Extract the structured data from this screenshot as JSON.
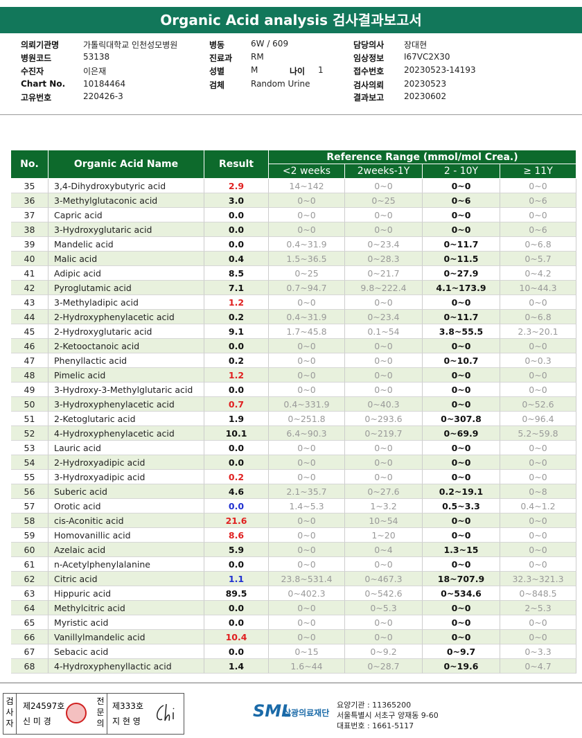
{
  "header": {
    "title": "Organic Acid analysis 검사결과보고서"
  },
  "info": {
    "left": [
      {
        "label": "의뢰기관명",
        "value": "가톨릭대학교 인천성모병원"
      },
      {
        "label": "병원코드",
        "value": "53138"
      },
      {
        "label": "수진자",
        "value": "이은재"
      },
      {
        "label": "Chart No.",
        "value": "10184464"
      },
      {
        "label": "고유번호",
        "value": "220426-3"
      }
    ],
    "middle": [
      {
        "label": "병동",
        "value": "6W / 609"
      },
      {
        "label": "진료과",
        "value": "RM"
      },
      {
        "label": "성별",
        "value": "M"
      },
      {
        "label": "검체",
        "value": "Random Urine"
      }
    ],
    "age": {
      "label": "나이",
      "value": "1"
    },
    "right": [
      {
        "label": "담당의사",
        "value": "장대현"
      },
      {
        "label": "임상정보",
        "value": "I67VC2X30"
      },
      {
        "label": "접수번호",
        "value": "20230523-14193"
      },
      {
        "label": "검사의뢰",
        "value": "20230523"
      },
      {
        "label": "결과보고",
        "value": "20230602"
      }
    ]
  },
  "table": {
    "headers": {
      "no": "No.",
      "name": "Organic Acid Name",
      "result": "Result",
      "reference": "Reference Range (mmol/mol Crea.)",
      "ages": [
        "<2 weeks",
        "2weeks-1Y",
        "2 - 10Y",
        "≥ 11Y"
      ]
    },
    "rows": [
      {
        "no": 35,
        "name": "3,4-Dihydroxybutyric acid",
        "result": "2.9",
        "color": "#e02020",
        "ranges": [
          "14~142",
          "0~0",
          "0~0",
          "0~0"
        ]
      },
      {
        "no": 36,
        "name": "3-Methylglutaconic acid",
        "result": "3.0",
        "ranges": [
          "0~0",
          "0~25",
          "0~6",
          "0~6"
        ]
      },
      {
        "no": 37,
        "name": "Capric acid",
        "result": "0.0",
        "ranges": [
          "0~0",
          "0~0",
          "0~0",
          "0~0"
        ]
      },
      {
        "no": 38,
        "name": "3-Hydroxyglutaric acid",
        "result": "0.0",
        "ranges": [
          "0~0",
          "0~0",
          "0~0",
          "0~6"
        ]
      },
      {
        "no": 39,
        "name": "Mandelic acid",
        "result": "0.0",
        "ranges": [
          "0.4~31.9",
          "0~23.4",
          "0~11.7",
          "0~6.8"
        ]
      },
      {
        "no": 40,
        "name": "Malic acid",
        "result": "0.4",
        "ranges": [
          "1.5~36.5",
          "0~28.3",
          "0~11.5",
          "0~5.7"
        ]
      },
      {
        "no": 41,
        "name": "Adipic acid",
        "result": "8.5",
        "ranges": [
          "0~25",
          "0~21.7",
          "0~27.9",
          "0~4.2"
        ]
      },
      {
        "no": 42,
        "name": "Pyroglutamic acid",
        "result": "7.1",
        "ranges": [
          "0.7~94.7",
          "9.8~222.4",
          "4.1~173.9",
          "10~44.3"
        ]
      },
      {
        "no": 43,
        "name": "3-Methyladipic acid",
        "result": "1.2",
        "color": "#e02020",
        "ranges": [
          "0~0",
          "0~0",
          "0~0",
          "0~0"
        ]
      },
      {
        "no": 44,
        "name": "2-Hydroxyphenylacetic acid",
        "result": "0.2",
        "ranges": [
          "0.4~31.9",
          "0~23.4",
          "0~11.7",
          "0~6.8"
        ]
      },
      {
        "no": 45,
        "name": "2-Hydroxyglutaric acid",
        "result": "9.1",
        "ranges": [
          "1.7~45.8",
          "0.1~54",
          "3.8~55.5",
          "2.3~20.1"
        ]
      },
      {
        "no": 46,
        "name": "2-Ketooctanoic acid",
        "result": "0.0",
        "ranges": [
          "0~0",
          "0~0",
          "0~0",
          "0~0"
        ]
      },
      {
        "no": 47,
        "name": "Phenyllactic acid",
        "result": "0.2",
        "ranges": [
          "0~0",
          "0~0",
          "0~10.7",
          "0~0.3"
        ]
      },
      {
        "no": 48,
        "name": "Pimelic acid",
        "result": "1.2",
        "color": "#e02020",
        "ranges": [
          "0~0",
          "0~0",
          "0~0",
          "0~0"
        ]
      },
      {
        "no": 49,
        "name": "3-Hydroxy-3-Methylglutaric acid",
        "result": "0.0",
        "ranges": [
          "0~0",
          "0~0",
          "0~0",
          "0~0"
        ]
      },
      {
        "no": 50,
        "name": "3-Hydroxyphenylacetic acid",
        "result": "0.7",
        "color": "#e02020",
        "ranges": [
          "0.4~331.9",
          "0~40.3",
          "0~0",
          "0~52.6"
        ]
      },
      {
        "no": 51,
        "name": "2-Ketoglutaric acid",
        "result": "1.9",
        "ranges": [
          "0~251.8",
          "0~293.6",
          "0~307.8",
          "0~96.4"
        ]
      },
      {
        "no": 52,
        "name": "4-Hydroxyphenylacetic acid",
        "result": "10.1",
        "ranges": [
          "6.4~90.3",
          "0~219.7",
          "0~69.9",
          "5.2~59.8"
        ]
      },
      {
        "no": 53,
        "name": "Lauric acid",
        "result": "0.0",
        "ranges": [
          "0~0",
          "0~0",
          "0~0",
          "0~0"
        ]
      },
      {
        "no": 54,
        "name": "2-Hydroxyadipic acid",
        "result": "0.0",
        "ranges": [
          "0~0",
          "0~0",
          "0~0",
          "0~0"
        ]
      },
      {
        "no": 55,
        "name": "3-Hydroxyadipic acid",
        "result": "0.2",
        "color": "#e02020",
        "ranges": [
          "0~0",
          "0~0",
          "0~0",
          "0~0"
        ]
      },
      {
        "no": 56,
        "name": "Suberic acid",
        "result": "4.6",
        "ranges": [
          "2.1~35.7",
          "0~27.6",
          "0.2~19.1",
          "0~8"
        ]
      },
      {
        "no": 57,
        "name": "Orotic acid",
        "result": "0.0",
        "color": "#2030d0",
        "ranges": [
          "1.4~5.3",
          "1~3.2",
          "0.5~3.3",
          "0.4~1.2"
        ]
      },
      {
        "no": 58,
        "name": "cis-Aconitic acid",
        "result": "21.6",
        "color": "#e02020",
        "ranges": [
          "0~0",
          "10~54",
          "0~0",
          "0~0"
        ]
      },
      {
        "no": 59,
        "name": "Homovanillic acid",
        "result": "8.6",
        "color": "#e02020",
        "ranges": [
          "0~0",
          "1~20",
          "0~0",
          "0~0"
        ]
      },
      {
        "no": 60,
        "name": "Azelaic acid",
        "result": "5.9",
        "ranges": [
          "0~0",
          "0~4",
          "1.3~15",
          "0~0"
        ]
      },
      {
        "no": 61,
        "name": "n-Acetylphenylalanine",
        "result": "0.0",
        "ranges": [
          "0~0",
          "0~0",
          "0~0",
          "0~0"
        ]
      },
      {
        "no": 62,
        "name": "Citric acid",
        "result": "1.1",
        "color": "#2030d0",
        "ranges": [
          "23.8~531.4",
          "0~467.3",
          "18~707.9",
          "32.3~321.3"
        ]
      },
      {
        "no": 63,
        "name": "Hippuric acid",
        "result": "89.5",
        "ranges": [
          "0~402.3",
          "0~542.6",
          "0~534.6",
          "0~848.5"
        ]
      },
      {
        "no": 64,
        "name": "Methylcitric acid",
        "result": "0.0",
        "ranges": [
          "0~0",
          "0~5.3",
          "0~0",
          "2~5.3"
        ]
      },
      {
        "no": 65,
        "name": "Myristic acid",
        "result": "0.0",
        "ranges": [
          "0~0",
          "0~0",
          "0~0",
          "0~0"
        ]
      },
      {
        "no": 66,
        "name": "Vanillylmandelic acid",
        "result": "10.4",
        "color": "#e02020",
        "ranges": [
          "0~0",
          "0~0",
          "0~0",
          "0~0"
        ]
      },
      {
        "no": 67,
        "name": "Sebacic acid",
        "result": "0.0",
        "ranges": [
          "0~15",
          "0~9.2",
          "0~9.7",
          "0~3.3"
        ]
      },
      {
        "no": 68,
        "name": "4-Hydroxyphenyllactic acid",
        "result": "1.4",
        "ranges": [
          "1.6~44",
          "0~28.7",
          "0~19.6",
          "0~4.7"
        ]
      }
    ]
  },
  "footer": {
    "inspector": {
      "label": "검사자",
      "number": "제24597호",
      "name": "신 미 경"
    },
    "specialist": {
      "label": "전문의",
      "number": "제333호",
      "name": "지 현 영"
    },
    "logo": "SML",
    "org": "삼광의료재단",
    "lines": [
      "요양기관 : 11365200",
      "서울특별시 서초구 양재동 9-60",
      "대표번호 : 1661-5117"
    ]
  }
}
